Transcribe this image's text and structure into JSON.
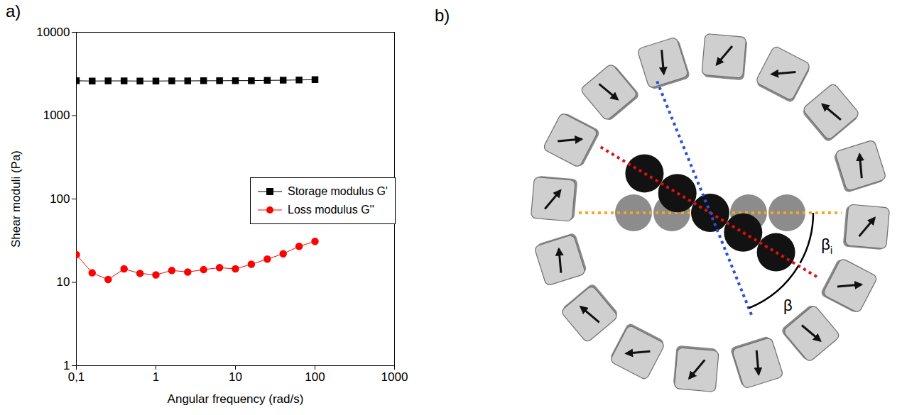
{
  "chart_data": {
    "type": "line",
    "panel": "a)",
    "x_label": "Angular frequency (rad/s)",
    "y_label": "Shear moduli (Pa)",
    "log": true,
    "grid": false,
    "legend": "right",
    "xlim": [
      0.1,
      1000
    ],
    "xticks": [
      {
        "value": 0.1,
        "label": "0,1"
      },
      1,
      10,
      100,
      1000
    ],
    "ylim": [
      1,
      10000
    ],
    "yticks": [
      1,
      10,
      100,
      1000,
      10000
    ],
    "x": [
      0.1,
      0.158,
      0.251,
      0.398,
      0.631,
      1,
      1.585,
      2.512,
      3.981,
      6.31,
      10,
      15.85,
      25.12,
      39.81,
      63.1,
      100
    ],
    "series": [
      {
        "name": "Storage modulus G'",
        "color": "#000000",
        "marker": "square",
        "line_style": "solid",
        "values": [
          2620,
          2600,
          2610,
          2610,
          2600,
          2600,
          2610,
          2610,
          2620,
          2620,
          2630,
          2630,
          2650,
          2660,
          2680,
          2700
        ]
      },
      {
        "name": "Loss modulus G''",
        "color": "#ff0000",
        "marker": "circle",
        "line_style": "solid",
        "values": [
          21.5,
          13,
          10.8,
          14.5,
          12.8,
          12.3,
          13.9,
          13.3,
          14.2,
          15,
          14.5,
          16.5,
          19,
          22,
          27,
          31
        ]
      }
    ]
  },
  "diagram": {
    "panel": "b)",
    "labels": [
      {
        "text": "β"
      },
      {
        "text": "β",
        "subscript": "i"
      }
    ]
  }
}
